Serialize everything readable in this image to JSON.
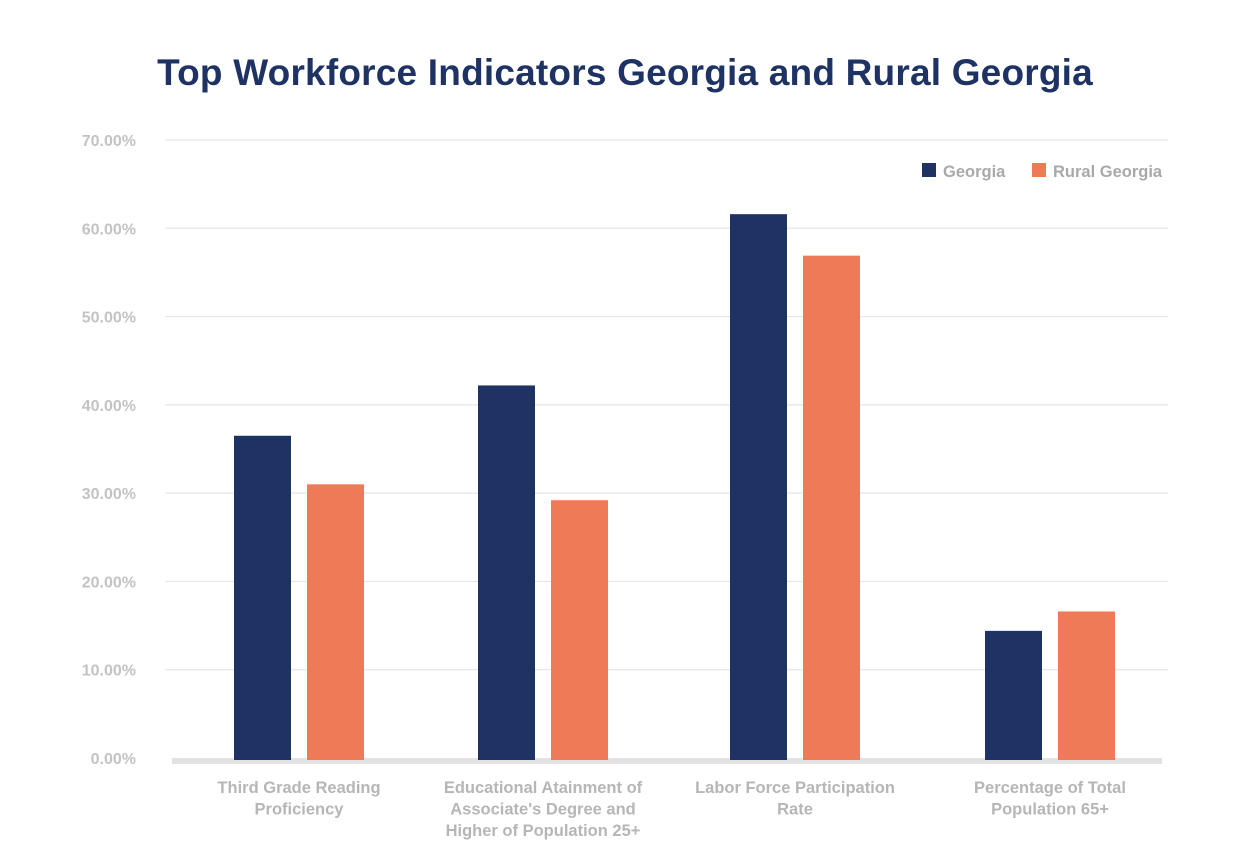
{
  "colors": {
    "georgia": "#1e3364",
    "rural": "#ee7a58",
    "grid": "#e6e6e6",
    "axis": "#e2e2e2"
  },
  "chart_data": {
    "type": "bar",
    "title": "Top Workforce Indicators Georgia and Rural Georgia",
    "xlabel": "",
    "ylabel": "",
    "ylim": [
      0,
      70
    ],
    "yticks": [
      "0.00%",
      "10.00%",
      "20.00%",
      "30.00%",
      "40.00%",
      "50.00%",
      "60.00%",
      "70.00%"
    ],
    "grid": true,
    "legend_position": "top-right",
    "categories": [
      [
        "Third Grade Reading",
        "Proficiency"
      ],
      [
        "Educational Atainment of",
        "Associate's Degree and",
        "Higher of Population 25+"
      ],
      [
        "Labor Force Participation",
        "Rate"
      ],
      [
        "Percentage of Total",
        "Population 65+"
      ]
    ],
    "series": [
      {
        "name": "Georgia",
        "values": [
          36.5,
          42.2,
          61.6,
          14.4
        ]
      },
      {
        "name": "Rural Georgia",
        "values": [
          31.0,
          29.2,
          56.9,
          16.6
        ]
      }
    ]
  }
}
